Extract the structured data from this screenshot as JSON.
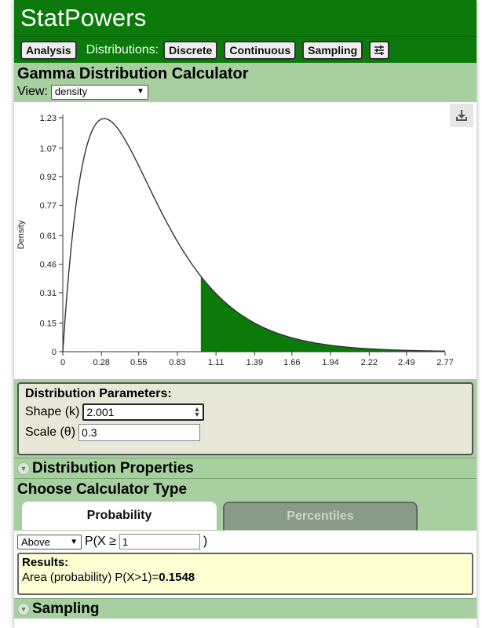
{
  "app": {
    "brand": "StatPowers"
  },
  "nav": {
    "analysis": "Analysis",
    "distributions_label": "Distributions:",
    "discrete": "Discrete",
    "continuous": "Continuous",
    "sampling": "Sampling",
    "settings_icon": "sliders-icon"
  },
  "calculator": {
    "title": "Gamma Distribution Calculator",
    "view_label": "View:",
    "view_value": "density"
  },
  "chart_data": {
    "type": "area",
    "ylabel": "Density",
    "xlabel": "",
    "xlim": [
      0,
      2.77
    ],
    "ylim": [
      0,
      1.23
    ],
    "x_ticks": [
      "0",
      "0.28",
      "0.55",
      "0.83",
      "1.11",
      "1.39",
      "1.66",
      "1.94",
      "2.22",
      "2.49",
      "2.77"
    ],
    "y_ticks": [
      "0",
      "0.15",
      "0.31",
      "0.46",
      "0.61",
      "0.77",
      "0.92",
      "1.07",
      "1.23"
    ],
    "distribution": "gamma",
    "shape_k": 2.001,
    "scale_theta": 0.3,
    "shaded_from": 1,
    "shaded_to": 2.77,
    "line_color": "#333333",
    "fill_color": "#0b7a0b"
  },
  "params": {
    "title": "Distribution Parameters:",
    "shape_label": "Shape (k)",
    "shape_value": "2.001",
    "scale_label": "Scale (θ)",
    "scale_value": "0.3"
  },
  "properties": {
    "title": "Distribution Properties"
  },
  "calc_type": {
    "title": "Choose Calculator Type",
    "tab_probability": "Probability",
    "tab_percentiles": "Percentiles"
  },
  "probability": {
    "direction": "Above",
    "prefix": "P(X ≥",
    "value": "1",
    "suffix": ")"
  },
  "results": {
    "title": "Results:",
    "text": "Area (probability) P(X>1)=",
    "value": "0.1548"
  },
  "sampling": {
    "title": "Sampling"
  },
  "colors": {
    "header_green": "#0b7a0b",
    "section_green": "#a7cfa0",
    "results_bg": "#ffffd4"
  }
}
